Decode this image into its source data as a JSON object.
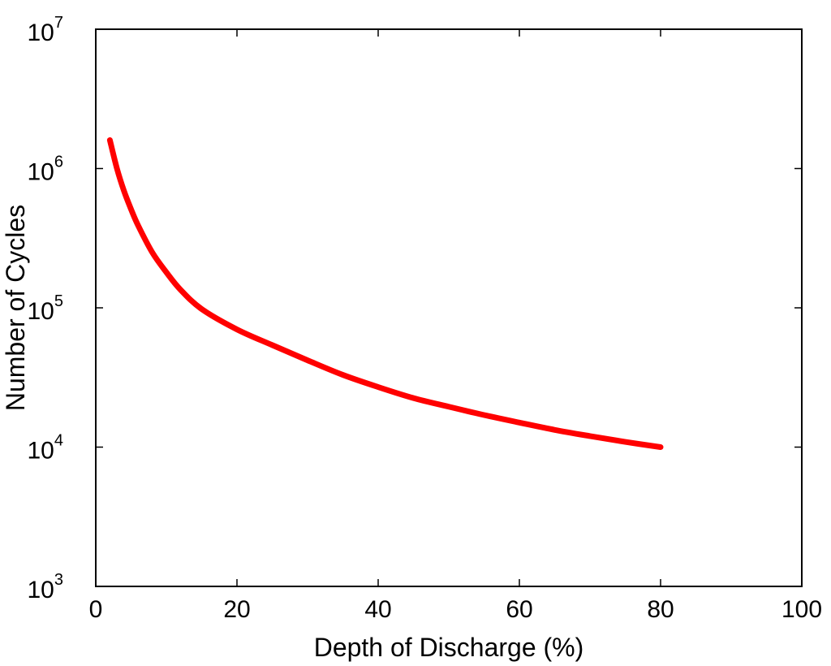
{
  "chart_data": {
    "type": "line",
    "xlabel": "Depth of Discharge (%)",
    "ylabel": "Number of Cycles",
    "xlim": [
      0,
      100
    ],
    "ylim": [
      1000,
      10000000
    ],
    "yscale": "log",
    "grid": false,
    "x_ticks": [
      "0",
      "20",
      "40",
      "60",
      "80",
      "100"
    ],
    "y_ticks": [
      {
        "base": "10",
        "exp": "3"
      },
      {
        "base": "10",
        "exp": "4"
      },
      {
        "base": "10",
        "exp": "5"
      },
      {
        "base": "10",
        "exp": "6"
      },
      {
        "base": "10",
        "exp": "7"
      }
    ],
    "series": [
      {
        "color": "#ff0000",
        "x": [
          2,
          3,
          4,
          5,
          6,
          8,
          10,
          12,
          15,
          20,
          25,
          30,
          35,
          40,
          45,
          50,
          55,
          60,
          65,
          70,
          75,
          80
        ],
        "y": [
          1600000,
          1000000,
          690000,
          510000,
          390000,
          250000,
          180000,
          135000,
          98000,
          70000,
          54000,
          42000,
          33000,
          27000,
          22500,
          19500,
          17000,
          15000,
          13300,
          12000,
          10900,
          10000
        ]
      }
    ]
  }
}
